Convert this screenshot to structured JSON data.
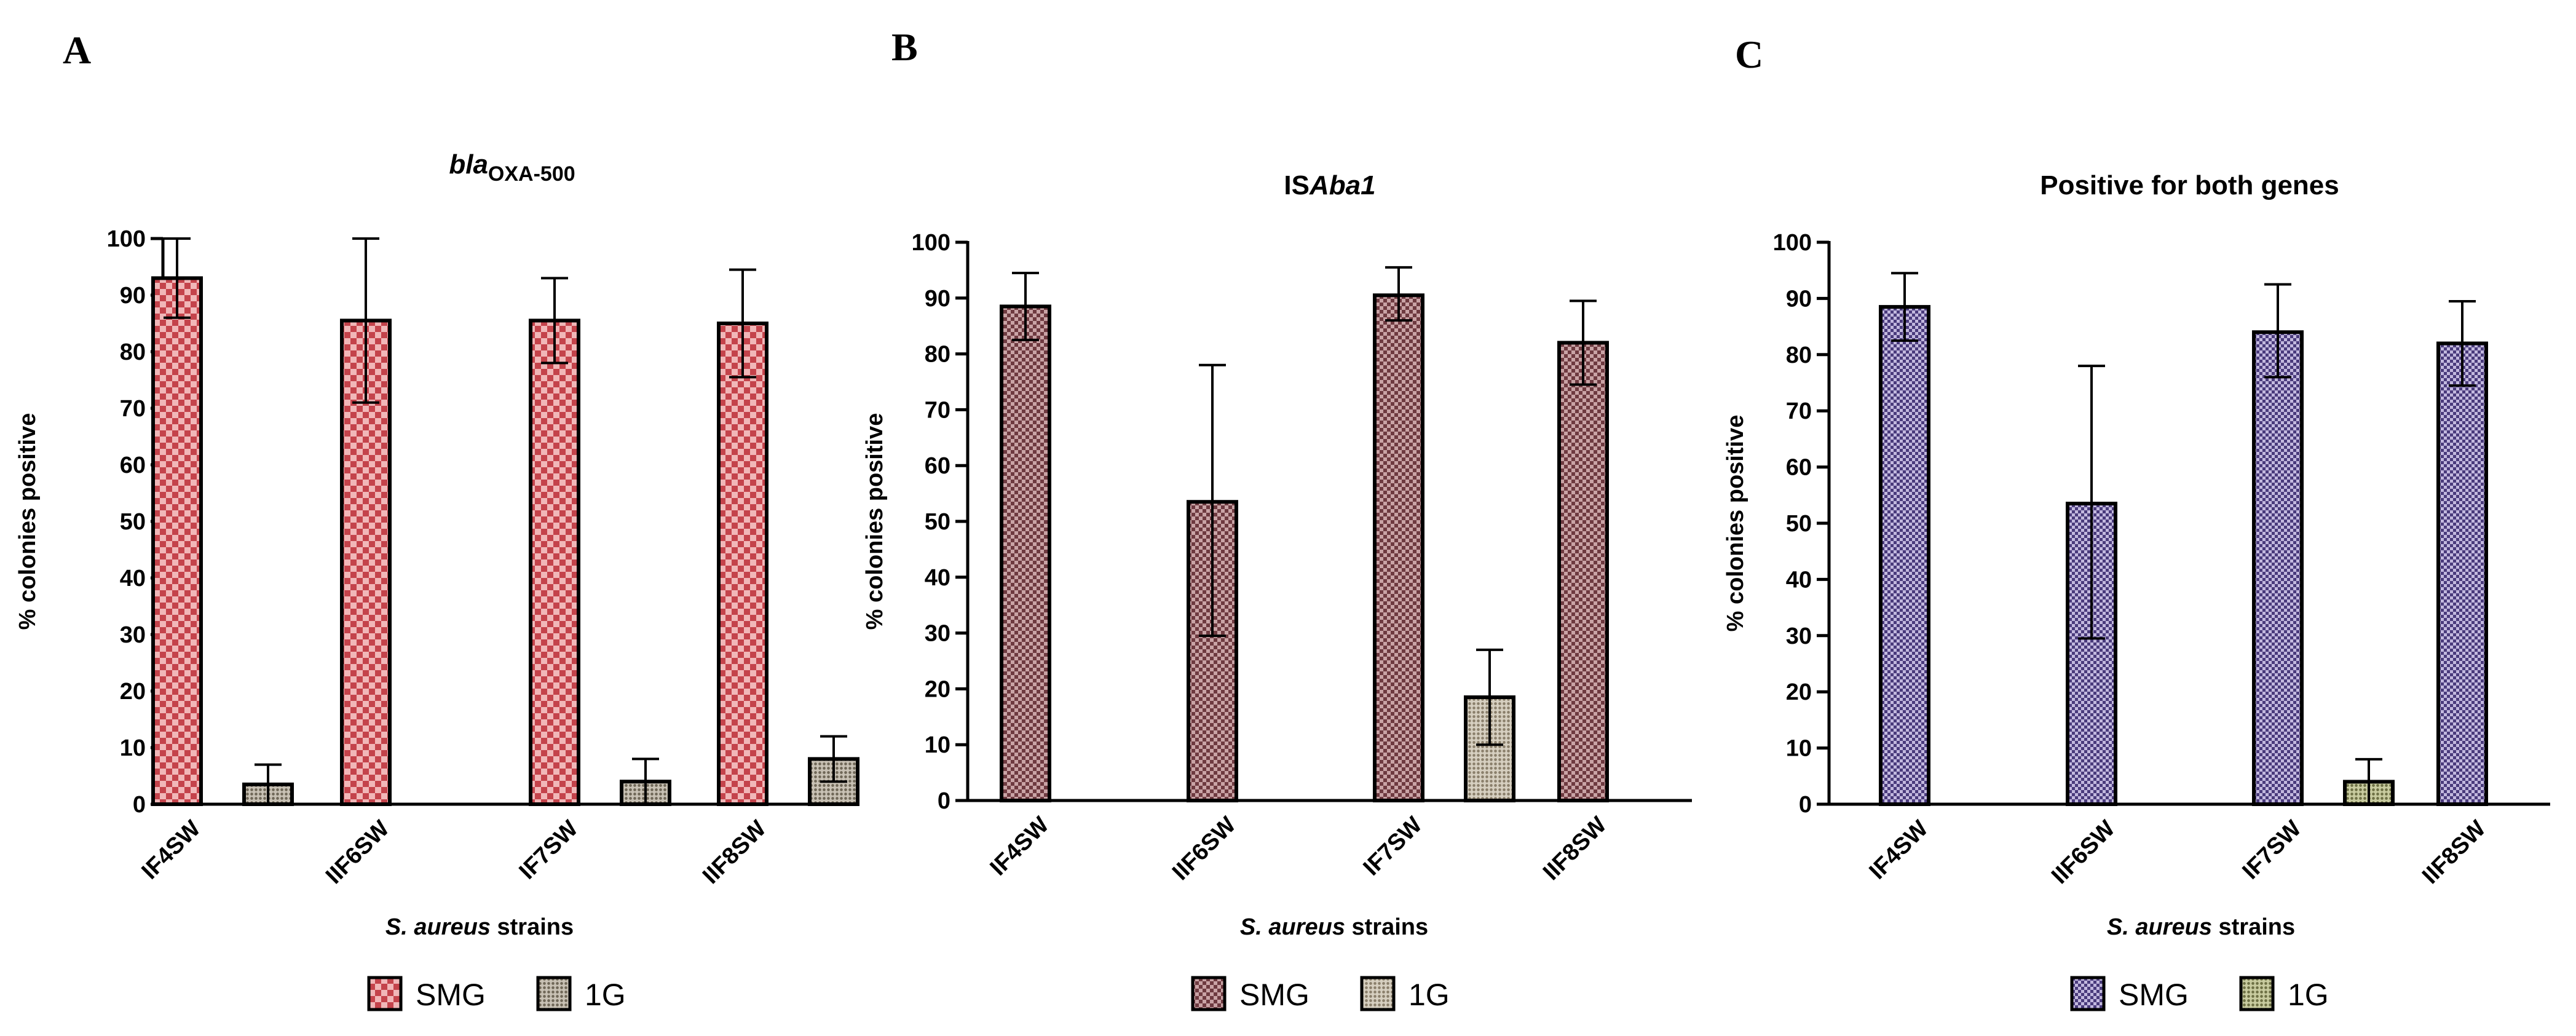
{
  "figure": {
    "panels": [
      {
        "letter": "A",
        "title_main": "bla",
        "title_sub": "OXA-500",
        "title_italic_main": true
      },
      {
        "letter": "B",
        "title_main": "IS",
        "title_sub": "Aba1",
        "title_italic_main": false
      },
      {
        "letter": "C",
        "title_main": "Positive for both genes",
        "title_sub": "",
        "title_italic_main": false
      }
    ],
    "xlabel_italic": "S. aureus",
    "xlabel_rest": " strains",
    "colors": {
      "smg_a": "#d9757a",
      "smg_b": "#9c6468",
      "smg_c": "#8a7ab0",
      "g1_a": "#a89f90",
      "g1_b": "#b5ab9a",
      "g1_c": "#a9ad7f",
      "axis": "#000000"
    }
  },
  "chart_data": [
    {
      "type": "bar",
      "title": "blaOXA-500",
      "xlabel": "S. aureus strains",
      "ylabel": "% colonies positive",
      "ylim": [
        0,
        100
      ],
      "yticks": [
        0,
        10,
        20,
        30,
        40,
        50,
        60,
        70,
        80,
        90,
        100
      ],
      "categories": [
        "IF4SW",
        "IIF6SW",
        "IF7SW",
        "IIF8SW"
      ],
      "series": [
        {
          "name": "SMG",
          "values": [
            93,
            85.5,
            85.5,
            85
          ],
          "err_low": [
            86,
            71,
            78,
            75.5
          ],
          "err_high": [
            100,
            100,
            93,
            94.5
          ]
        },
        {
          "name": "1G",
          "values": [
            3.5,
            0,
            4,
            8
          ],
          "err_low": [
            0,
            0,
            0,
            4
          ],
          "err_high": [
            7,
            0,
            8,
            12
          ]
        }
      ]
    },
    {
      "type": "bar",
      "title": "ISAba1",
      "xlabel": "S. aureus strains",
      "ylabel": "% colonies positive",
      "ylim": [
        0,
        100
      ],
      "yticks": [
        0,
        10,
        20,
        30,
        40,
        50,
        60,
        70,
        80,
        90,
        100
      ],
      "categories": [
        "IF4SW",
        "IIF6SW",
        "IF7SW",
        "IIF8SW"
      ],
      "series": [
        {
          "name": "SMG",
          "values": [
            88.5,
            53.5,
            90.5,
            82
          ],
          "err_low": [
            82.5,
            29.5,
            86,
            74.5
          ],
          "err_high": [
            94.5,
            78,
            95.5,
            89.5
          ]
        },
        {
          "name": "1G",
          "values": [
            0,
            0,
            18.5,
            0
          ],
          "err_low": [
            0,
            0,
            10,
            0
          ],
          "err_high": [
            0,
            0,
            27,
            0
          ]
        }
      ]
    },
    {
      "type": "bar",
      "title": "Positive for both genes",
      "xlabel": "S. aureus strains",
      "ylabel": "% colonies positive",
      "ylim": [
        0,
        100
      ],
      "yticks": [
        0,
        10,
        20,
        30,
        40,
        50,
        60,
        70,
        80,
        90,
        100
      ],
      "categories": [
        "IF4SW",
        "IIF6SW",
        "IF7SW",
        "IIF8SW"
      ],
      "series": [
        {
          "name": "SMG",
          "values": [
            88.5,
            53.5,
            84,
            82
          ],
          "err_low": [
            82.5,
            29.5,
            76,
            74.5
          ],
          "err_high": [
            94.5,
            78,
            92.5,
            89.5
          ]
        },
        {
          "name": "1G",
          "values": [
            0,
            0,
            4,
            0
          ],
          "err_low": [
            0,
            0,
            0,
            0
          ],
          "err_high": [
            0,
            0,
            8,
            0
          ]
        }
      ]
    }
  ]
}
